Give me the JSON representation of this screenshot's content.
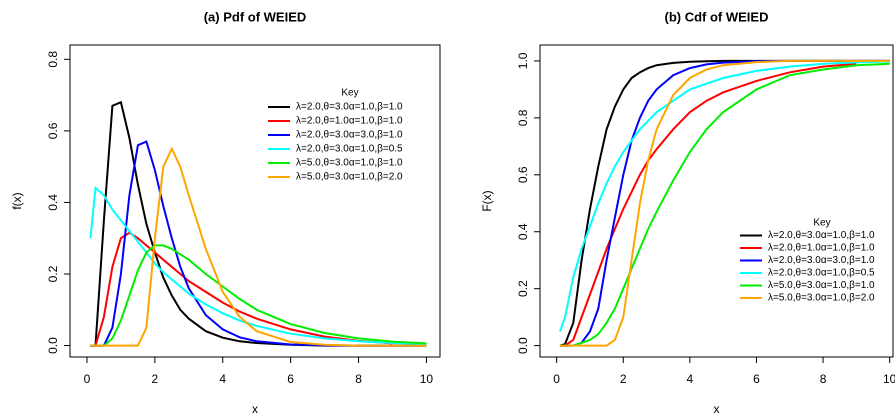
{
  "chart_data": [
    {
      "type": "line",
      "title": "(a) Pdf of WEIED",
      "xlabel": "x",
      "ylabel": "f(x)",
      "xlim": [
        -0.5,
        10.4
      ],
      "ylim": [
        -0.032,
        0.84
      ],
      "xticks": [
        0,
        2,
        4,
        6,
        8,
        10
      ],
      "yticks": [
        {
          "value": 0,
          "label": "0.0"
        },
        {
          "value": 0.2,
          "label": "0.2"
        },
        {
          "value": 0.4,
          "label": "0.4"
        },
        {
          "value": 0.6,
          "label": "0.6"
        },
        {
          "value": 0.8,
          "label": "0.8"
        }
      ],
      "legend_title": "Key",
      "legend_position": "upper right",
      "x": [
        0.1,
        0.25,
        0.5,
        0.75,
        1,
        1.25,
        1.5,
        1.75,
        2,
        2.25,
        2.5,
        2.75,
        3,
        3.5,
        4,
        4.5,
        5,
        6,
        7,
        8,
        9,
        10
      ],
      "series": [
        {
          "name": "λ=2.0,θ=3.0α=1.0,β=1.0",
          "color": "#000000",
          "values": [
            0,
            0,
            0.35,
            0.67,
            0.68,
            0.58,
            0.45,
            0.34,
            0.26,
            0.19,
            0.14,
            0.1,
            0.075,
            0.04,
            0.022,
            0.012,
            0.007,
            0.002,
            0,
            0,
            0,
            0
          ]
        },
        {
          "name": "λ=2.0,θ=1.0α=1.0,β=1.0",
          "color": "#ff0000",
          "values": [
            0,
            0,
            0.08,
            0.22,
            0.3,
            0.315,
            0.3,
            0.28,
            0.26,
            0.24,
            0.22,
            0.2,
            0.18,
            0.15,
            0.12,
            0.095,
            0.075,
            0.045,
            0.025,
            0.013,
            0.006,
            null
          ]
        },
        {
          "name": "λ=2.0,θ=3.0α=3.0,β=1.0",
          "color": "#0000ff",
          "values": [
            0,
            0,
            0,
            0.05,
            0.2,
            0.42,
            0.56,
            0.57,
            0.49,
            0.39,
            0.3,
            0.22,
            0.16,
            0.085,
            0.045,
            0.023,
            0.012,
            0.003,
            0.001,
            0,
            0,
            0
          ]
        },
        {
          "name": "λ=2.0,θ=3.0α=1.0,β=0.5",
          "color": "#00ffff",
          "values": [
            0.3,
            0.44,
            0.42,
            0.38,
            0.35,
            0.32,
            0.29,
            0.26,
            0.23,
            0.205,
            0.185,
            0.165,
            0.145,
            0.115,
            0.09,
            0.07,
            0.055,
            0.033,
            0.02,
            0.012,
            0.007,
            0.004
          ]
        },
        {
          "name": "λ=5.0,θ=3.0α=1.0,β=1.0",
          "color": "#00ee00",
          "values": [
            0,
            0,
            0,
            0.02,
            0.07,
            0.14,
            0.21,
            0.26,
            0.28,
            0.28,
            0.27,
            0.255,
            0.24,
            0.2,
            0.165,
            0.13,
            0.1,
            0.06,
            0.035,
            0.02,
            0.011,
            0.006
          ]
        },
        {
          "name": "λ=5.0,θ=3.0α=1.0,β=2.0",
          "color": "#ffa500",
          "values": [
            0,
            0,
            0,
            0,
            0,
            0,
            0,
            0.05,
            0.3,
            0.5,
            0.55,
            0.5,
            0.42,
            0.27,
            0.15,
            0.08,
            0.04,
            0.01,
            0.002,
            0,
            0,
            0
          ]
        }
      ]
    },
    {
      "type": "line",
      "title": "(b) Cdf of WEIED",
      "xlabel": "x",
      "ylabel": "F(x)",
      "xlim": [
        -0.5,
        10.1
      ],
      "ylim": [
        -0.04,
        1.056
      ],
      "xticks": [
        0,
        2,
        4,
        6,
        8,
        10
      ],
      "yticks": [
        {
          "value": 0,
          "label": "0.0"
        },
        {
          "value": 0.2,
          "label": "0.2"
        },
        {
          "value": 0.4,
          "label": "0.4"
        },
        {
          "value": 0.6,
          "label": "0.6"
        },
        {
          "value": 0.8,
          "label": "0.8"
        },
        {
          "value": 1,
          "label": "1.0"
        }
      ],
      "legend_title": "Key",
      "legend_position": "lower right",
      "x": [
        0.1,
        0.25,
        0.5,
        0.75,
        1,
        1.25,
        1.5,
        1.75,
        2,
        2.25,
        2.5,
        2.75,
        3,
        3.5,
        4,
        4.5,
        5,
        6,
        7,
        8,
        9,
        10
      ],
      "series": [
        {
          "name": "λ=2.0,θ=3.0α=1.0,β=1.0",
          "color": "#000000",
          "values": [
            0,
            0.005,
            0.08,
            0.3,
            0.48,
            0.63,
            0.76,
            0.84,
            0.9,
            0.94,
            0.96,
            0.975,
            0.985,
            0.993,
            0.997,
            0.999,
            1,
            1,
            1,
            1,
            1,
            1
          ]
        },
        {
          "name": "λ=2.0,θ=1.0α=1.0,β=1.0",
          "color": "#ff0000",
          "values": [
            0,
            0,
            0.02,
            0.1,
            0.18,
            0.26,
            0.34,
            0.41,
            0.48,
            0.54,
            0.6,
            0.65,
            0.69,
            0.76,
            0.82,
            0.86,
            0.89,
            0.93,
            0.96,
            0.98,
            0.99,
            null
          ]
        },
        {
          "name": "λ=2.0,θ=3.0α=3.0,β=1.0",
          "color": "#0000ff",
          "values": [
            0,
            0,
            0,
            0.01,
            0.05,
            0.13,
            0.3,
            0.45,
            0.6,
            0.72,
            0.8,
            0.86,
            0.9,
            0.95,
            0.975,
            0.988,
            0.994,
            0.999,
            1,
            1,
            1,
            1
          ]
        },
        {
          "name": "λ=2.0,θ=3.0α=1.0,β=0.5",
          "color": "#00ffff",
          "values": [
            0.05,
            0.1,
            0.24,
            0.34,
            0.42,
            0.5,
            0.57,
            0.63,
            0.68,
            0.72,
            0.76,
            0.79,
            0.82,
            0.86,
            0.9,
            0.92,
            0.94,
            0.965,
            0.98,
            0.99,
            0.995,
            0.998
          ]
        },
        {
          "name": "λ=5.0,θ=3.0α=1.0,β=1.0",
          "color": "#00ee00",
          "values": [
            0,
            0,
            0,
            0.01,
            0.02,
            0.04,
            0.08,
            0.13,
            0.2,
            0.27,
            0.34,
            0.41,
            0.47,
            0.58,
            0.68,
            0.76,
            0.82,
            0.9,
            0.95,
            0.97,
            0.985,
            0.99
          ]
        },
        {
          "name": "λ=5.0,θ=3.0α=1.0,β=2.0",
          "color": "#ffa500",
          "values": [
            0,
            0,
            0,
            0,
            0,
            0,
            0,
            0.02,
            0.1,
            0.3,
            0.5,
            0.65,
            0.76,
            0.88,
            0.94,
            0.97,
            0.985,
            0.996,
            1,
            1,
            1,
            1
          ]
        }
      ]
    }
  ]
}
